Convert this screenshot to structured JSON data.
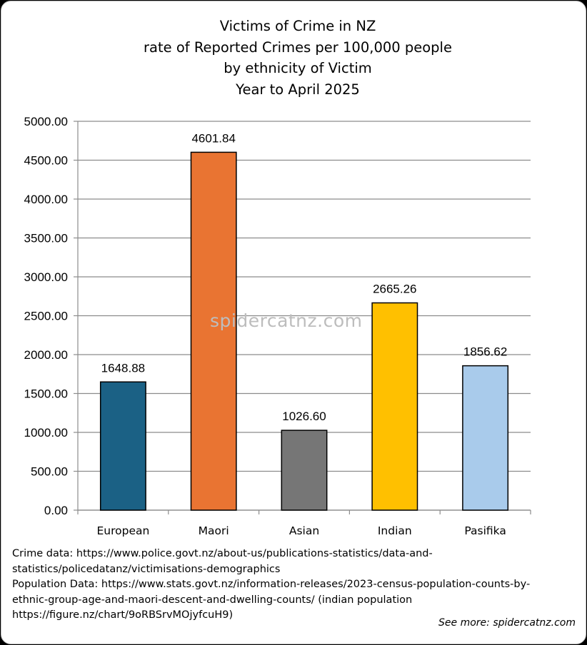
{
  "chart_data": {
    "type": "bar",
    "title_lines": [
      "Victims of Crime in NZ",
      "rate of Reported Crimes per 100,000 people",
      "by ethnicity of Victim",
      "Year to April 2025"
    ],
    "categories": [
      "European",
      "Maori",
      "Asian",
      "Indian",
      "Pasifika"
    ],
    "values": [
      1648.88,
      4601.84,
      1026.6,
      2665.26,
      1856.62
    ],
    "data_labels": [
      "1648.88",
      "4601.84",
      "1026.60",
      "2665.26",
      "1856.62"
    ],
    "colors": [
      "#1b6185",
      "#e97432",
      "#767676",
      "#ffc000",
      "#a9cbeb"
    ],
    "ylim": [
      0,
      5000
    ],
    "y_ticks": [
      "0.00",
      "500.00",
      "1000.00",
      "1500.00",
      "2000.00",
      "2500.00",
      "3000.00",
      "3500.00",
      "4000.00",
      "4500.00",
      "5000.00"
    ],
    "xlabel": "",
    "ylabel": "",
    "grid": true
  },
  "watermark": "spidercatnz.com",
  "sources": [
    "Crime data: https://www.police.govt.nz/about-us/publications-statistics/data-and-",
    "statistics/policedatanz/victimisations-demographics",
    "Population Data: https://www.stats.govt.nz/information-releases/2023-census-population-counts-by-",
    "ethnic-group-age-and-maori-descent-and-dwelling-counts/ (indian population",
    "https://figure.nz/chart/9oRBSrvMOjyfcuH9)"
  ],
  "see_more": "See more: spidercatnz.com"
}
